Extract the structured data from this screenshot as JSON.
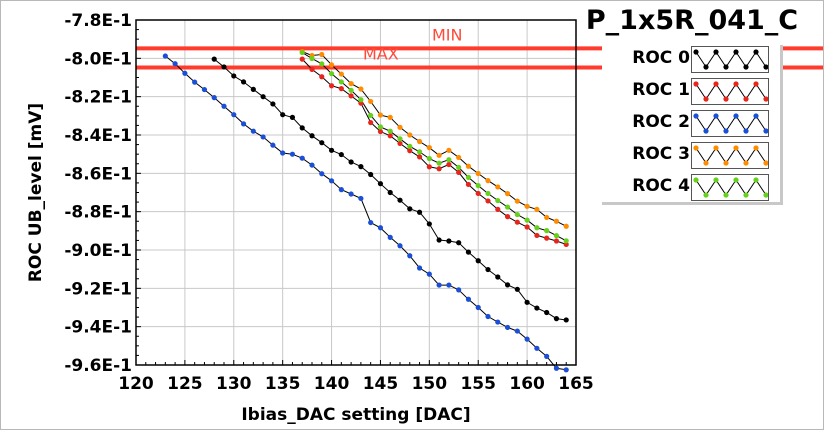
{
  "chart_data": {
    "type": "line",
    "title": "P_1x5R_041_C",
    "xlabel": "Ibias_DAC setting [DAC]",
    "ylabel": "ROC UB_level [mV]",
    "xlim": [
      120,
      165
    ],
    "ylim": [
      -0.96,
      -0.78
    ],
    "x_ticks": [
      "120",
      "125",
      "130",
      "135",
      "140",
      "145",
      "150",
      "155",
      "160",
      "165"
    ],
    "y_ticks": [
      "-7.8E-1",
      "-8.0E-1",
      "-8.2E-1",
      "-8.4E-1",
      "-8.6E-1",
      "-8.8E-1",
      "-9.0E-1",
      "-9.2E-1",
      "-9.4E-1",
      "-9.6E-1"
    ],
    "grid": true,
    "legend_position": "top-right",
    "reference_lines": [
      {
        "label": "MIN",
        "y": -0.7948,
        "color": "#ff3b2e"
      },
      {
        "label": "MAX",
        "y": -0.8048,
        "color": "#ff3b2e"
      }
    ],
    "series": [
      {
        "name": "ROC 0",
        "color": "#000000",
        "x": [
          128,
          129,
          130,
          131,
          132,
          133,
          134,
          135,
          136,
          137,
          138,
          139,
          140,
          141,
          142,
          143,
          144,
          145,
          146,
          147,
          148,
          149,
          150,
          151,
          152,
          153,
          154,
          155,
          156,
          157,
          158,
          159,
          160,
          161,
          162,
          163,
          164
        ],
        "y": [
          -0.8004,
          -0.8045,
          -0.8092,
          -0.8123,
          -0.8162,
          -0.82,
          -0.8238,
          -0.8294,
          -0.8308,
          -0.8363,
          -0.8404,
          -0.844,
          -0.848,
          -0.8502,
          -0.8541,
          -0.8565,
          -0.8606,
          -0.8654,
          -0.87,
          -0.874,
          -0.8785,
          -0.8803,
          -0.8864,
          -0.8948,
          -0.8953,
          -0.8962,
          -0.9011,
          -0.9056,
          -0.9102,
          -0.9141,
          -0.9182,
          -0.9205,
          -0.9273,
          -0.9303,
          -0.9326,
          -0.9358,
          -0.9365
        ]
      },
      {
        "name": "ROC 1",
        "color": "#e8251c",
        "x": [
          137,
          138,
          139,
          140,
          141,
          142,
          143,
          144,
          145,
          146,
          147,
          148,
          149,
          150,
          151,
          152,
          153,
          154,
          155,
          156,
          157,
          158,
          159,
          160,
          161,
          162,
          163,
          164
        ],
        "y": [
          -0.8004,
          -0.8058,
          -0.8096,
          -0.8143,
          -0.8158,
          -0.8196,
          -0.8234,
          -0.8335,
          -0.8382,
          -0.8404,
          -0.8444,
          -0.8482,
          -0.8514,
          -0.8566,
          -0.8576,
          -0.8554,
          -0.8595,
          -0.8658,
          -0.8705,
          -0.8744,
          -0.8788,
          -0.8826,
          -0.8855,
          -0.888,
          -0.8924,
          -0.8938,
          -0.8953,
          -0.8971
        ]
      },
      {
        "name": "ROC 2",
        "color": "#1a4fd6",
        "x": [
          123,
          124,
          125,
          126,
          127,
          128,
          129,
          130,
          131,
          132,
          133,
          134,
          135,
          136,
          137,
          138,
          139,
          140,
          141,
          142,
          143,
          144,
          145,
          146,
          147,
          148,
          149,
          150,
          151,
          152,
          153,
          154,
          155,
          156,
          157,
          158,
          159,
          160,
          161,
          162,
          163,
          164
        ],
        "y": [
          -0.7988,
          -0.8028,
          -0.8078,
          -0.8124,
          -0.8163,
          -0.8205,
          -0.825,
          -0.8294,
          -0.8342,
          -0.838,
          -0.841,
          -0.8453,
          -0.8494,
          -0.85,
          -0.8521,
          -0.8557,
          -0.8602,
          -0.8639,
          -0.8685,
          -0.8708,
          -0.8731,
          -0.8857,
          -0.8884,
          -0.8934,
          -0.8978,
          -0.903,
          -0.9094,
          -0.9126,
          -0.9183,
          -0.9183,
          -0.9208,
          -0.9257,
          -0.93,
          -0.9347,
          -0.9376,
          -0.9404,
          -0.9423,
          -0.9465,
          -0.9513,
          -0.9555,
          -0.9617,
          -0.9625
        ]
      },
      {
        "name": "ROC 3",
        "color": "#ff8c00",
        "x": [
          137,
          138,
          139,
          140,
          141,
          142,
          143,
          144,
          145,
          146,
          147,
          148,
          149,
          150,
          151,
          152,
          153,
          154,
          155,
          156,
          157,
          158,
          159,
          160,
          161,
          162,
          163,
          164
        ],
        "y": [
          -0.7965,
          -0.7985,
          -0.798,
          -0.8034,
          -0.8082,
          -0.8132,
          -0.816,
          -0.8225,
          -0.8296,
          -0.8308,
          -0.836,
          -0.84,
          -0.8434,
          -0.8466,
          -0.8506,
          -0.848,
          -0.8517,
          -0.8563,
          -0.8601,
          -0.8638,
          -0.8671,
          -0.8706,
          -0.8745,
          -0.8772,
          -0.8788,
          -0.883,
          -0.885,
          -0.8876
        ]
      },
      {
        "name": "ROC 4",
        "color": "#66d11a",
        "x": [
          137,
          138,
          139,
          140,
          141,
          142,
          143,
          144,
          145,
          146,
          147,
          148,
          149,
          150,
          151,
          152,
          153,
          154,
          155,
          156,
          157,
          158,
          159,
          160,
          161,
          162,
          163,
          164
        ],
        "y": [
          -0.797,
          -0.8001,
          -0.8029,
          -0.808,
          -0.8123,
          -0.8167,
          -0.8216,
          -0.8298,
          -0.8358,
          -0.838,
          -0.842,
          -0.8459,
          -0.8488,
          -0.8523,
          -0.8547,
          -0.8529,
          -0.8569,
          -0.8621,
          -0.8664,
          -0.8705,
          -0.8742,
          -0.8776,
          -0.8815,
          -0.8844,
          -0.8884,
          -0.8899,
          -0.8925,
          -0.8952
        ]
      }
    ]
  }
}
